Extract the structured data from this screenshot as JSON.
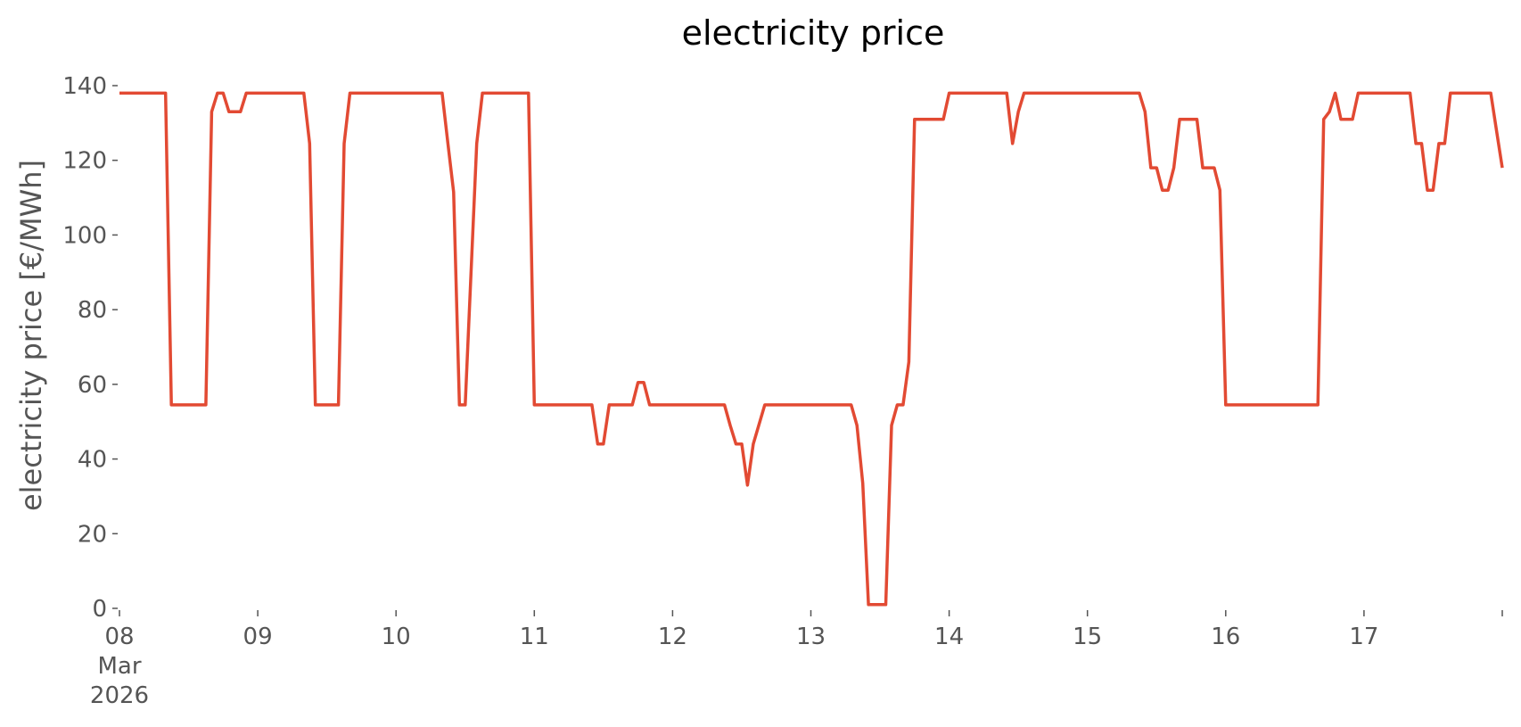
{
  "chart_data": {
    "type": "line",
    "title": "electricity price",
    "xlabel": "",
    "ylabel": "electricity price [€/MWh]",
    "ylim": [
      0,
      140
    ],
    "yticks": [
      0,
      20,
      40,
      60,
      80,
      100,
      120,
      140
    ],
    "xlim": [
      "2026-03-08 00:00",
      "2026-03-18 00:00"
    ],
    "xticks": [
      {
        "date": "2026-03-08",
        "label_lines": [
          "08",
          "Mar",
          "2026"
        ]
      },
      {
        "date": "2026-03-09",
        "label_lines": [
          "09"
        ]
      },
      {
        "date": "2026-03-10",
        "label_lines": [
          "10"
        ]
      },
      {
        "date": "2026-03-11",
        "label_lines": [
          "11"
        ]
      },
      {
        "date": "2026-03-12",
        "label_lines": [
          "12"
        ]
      },
      {
        "date": "2026-03-13",
        "label_lines": [
          "13"
        ]
      },
      {
        "date": "2026-03-14",
        "label_lines": [
          "14"
        ]
      },
      {
        "date": "2026-03-15",
        "label_lines": [
          "15"
        ]
      },
      {
        "date": "2026-03-16",
        "label_lines": [
          "16"
        ]
      },
      {
        "date": "2026-03-17",
        "label_lines": [
          "17"
        ]
      },
      {
        "date": "2026-03-18",
        "label_lines": [
          ""
        ]
      }
    ],
    "grid": false,
    "legend": "none",
    "series": [
      {
        "color": "#e24a33",
        "x": [
          "2026-03-08 00:00",
          "2026-03-08 08:00",
          "2026-03-08 09:00",
          "2026-03-08 15:00",
          "2026-03-08 16:00",
          "2026-03-08 17:00",
          "2026-03-08 18:00",
          "2026-03-08 19:00",
          "2026-03-08 20:00",
          "2026-03-08 21:00",
          "2026-03-08 22:00",
          "2026-03-08 23:00",
          "2026-03-09 00:00",
          "2026-03-09 08:00",
          "2026-03-09 09:00",
          "2026-03-09 10:00",
          "2026-03-09 14:00",
          "2026-03-09 15:00",
          "2026-03-09 16:00",
          "2026-03-10 08:00",
          "2026-03-10 09:00",
          "2026-03-10 10:00",
          "2026-03-10 11:00",
          "2026-03-10 12:00",
          "2026-03-10 14:00",
          "2026-03-10 15:00",
          "2026-03-10 16:00",
          "2026-03-10 23:00",
          "2026-03-11 00:00",
          "2026-03-11 10:00",
          "2026-03-11 11:00",
          "2026-03-11 12:00",
          "2026-03-11 13:00",
          "2026-03-11 17:00",
          "2026-03-11 18:00",
          "2026-03-11 19:00",
          "2026-03-11 20:00",
          "2026-03-12 09:00",
          "2026-03-12 10:00",
          "2026-03-12 11:00",
          "2026-03-12 12:00",
          "2026-03-12 13:00",
          "2026-03-12 14:00",
          "2026-03-12 16:00",
          "2026-03-13 07:00",
          "2026-03-13 08:00",
          "2026-03-13 09:00",
          "2026-03-13 10:00",
          "2026-03-13 13:00",
          "2026-03-13 14:00",
          "2026-03-13 15:00",
          "2026-03-13 16:00",
          "2026-03-13 17:00",
          "2026-03-13 18:00",
          "2026-03-13 23:00",
          "2026-03-14 00:00",
          "2026-03-14 10:00",
          "2026-03-14 11:00",
          "2026-03-14 12:00",
          "2026-03-14 13:00",
          "2026-03-15 09:00",
          "2026-03-15 10:00",
          "2026-03-15 11:00",
          "2026-03-15 12:00",
          "2026-03-15 13:00",
          "2026-03-15 14:00",
          "2026-03-15 15:00",
          "2026-03-15 16:00",
          "2026-03-15 19:00",
          "2026-03-15 20:00",
          "2026-03-15 22:00",
          "2026-03-15 23:00",
          "2026-03-16 00:00",
          "2026-03-16 16:00",
          "2026-03-16 17:00",
          "2026-03-16 18:00",
          "2026-03-16 19:00",
          "2026-03-16 20:00",
          "2026-03-16 22:00",
          "2026-03-16 23:00",
          "2026-03-17 00:00",
          "2026-03-17 08:00",
          "2026-03-17 09:00",
          "2026-03-17 10:00",
          "2026-03-17 11:00",
          "2026-03-17 12:00",
          "2026-03-17 13:00",
          "2026-03-17 14:00",
          "2026-03-17 15:00",
          "2026-03-17 16:00",
          "2026-03-17 22:00",
          "2026-03-17 23:00",
          "2026-03-18 00:00"
        ],
        "y": [
          138,
          138,
          54.5,
          54.5,
          133,
          138,
          138,
          133,
          133,
          133,
          138,
          138,
          138,
          138,
          124.5,
          54.5,
          54.5,
          124.5,
          138,
          138,
          124.5,
          111.5,
          54.5,
          54.5,
          124.5,
          138,
          138,
          138,
          54.5,
          54.5,
          44,
          44,
          54.5,
          54.5,
          60.5,
          60.5,
          54.5,
          54.5,
          49,
          44,
          44,
          33,
          44,
          54.5,
          54.5,
          49,
          33.5,
          1,
          1,
          49,
          54.5,
          54.5,
          66,
          131,
          131,
          138,
          138,
          124.5,
          133,
          138,
          138,
          133,
          118,
          118,
          112,
          112,
          118,
          131,
          131,
          118,
          118,
          112,
          54.5,
          54.5,
          131,
          133,
          138,
          131,
          131,
          138,
          138,
          138,
          124.5,
          124.5,
          112,
          112,
          124.5,
          124.5,
          138,
          138,
          138,
          128,
          118
        ]
      }
    ]
  }
}
